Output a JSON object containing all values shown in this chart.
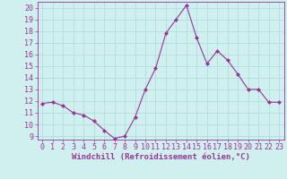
{
  "x": [
    0,
    1,
    2,
    3,
    4,
    5,
    6,
    7,
    8,
    9,
    10,
    11,
    12,
    13,
    14,
    15,
    16,
    17,
    18,
    19,
    20,
    21,
    22,
    23
  ],
  "y": [
    11.8,
    11.9,
    11.6,
    11.0,
    10.8,
    10.3,
    9.5,
    8.8,
    9.0,
    10.6,
    13.0,
    14.8,
    17.8,
    19.0,
    20.2,
    17.4,
    15.2,
    16.3,
    15.5,
    14.3,
    13.0,
    13.0,
    11.9,
    11.9
  ],
  "line_color": "#993399",
  "marker": "D",
  "marker_size": 2,
  "bg_color": "#d0f0f0",
  "grid_color": "#b0dede",
  "xlabel": "Windchill (Refroidissement éolien,°C)",
  "xlabel_color": "#993399",
  "tick_color": "#993399",
  "ylim_min": 8.7,
  "ylim_max": 20.5,
  "xlim_min": -0.5,
  "xlim_max": 23.5,
  "yticks": [
    9,
    10,
    11,
    12,
    13,
    14,
    15,
    16,
    17,
    18,
    19,
    20
  ],
  "xticks": [
    0,
    1,
    2,
    3,
    4,
    5,
    6,
    7,
    8,
    9,
    10,
    11,
    12,
    13,
    14,
    15,
    16,
    17,
    18,
    19,
    20,
    21,
    22,
    23
  ],
  "xtick_labels": [
    "0",
    "1",
    "2",
    "3",
    "4",
    "5",
    "6",
    "7",
    "8",
    "9",
    "10",
    "11",
    "12",
    "13",
    "14",
    "15",
    "16",
    "17",
    "18",
    "19",
    "20",
    "21",
    "22",
    "23"
  ],
  "ytick_labels": [
    "9",
    "10",
    "11",
    "12",
    "13",
    "14",
    "15",
    "16",
    "17",
    "18",
    "19",
    "20"
  ],
  "tick_fontsize": 6,
  "xlabel_fontsize": 6.5,
  "line_width": 0.8
}
